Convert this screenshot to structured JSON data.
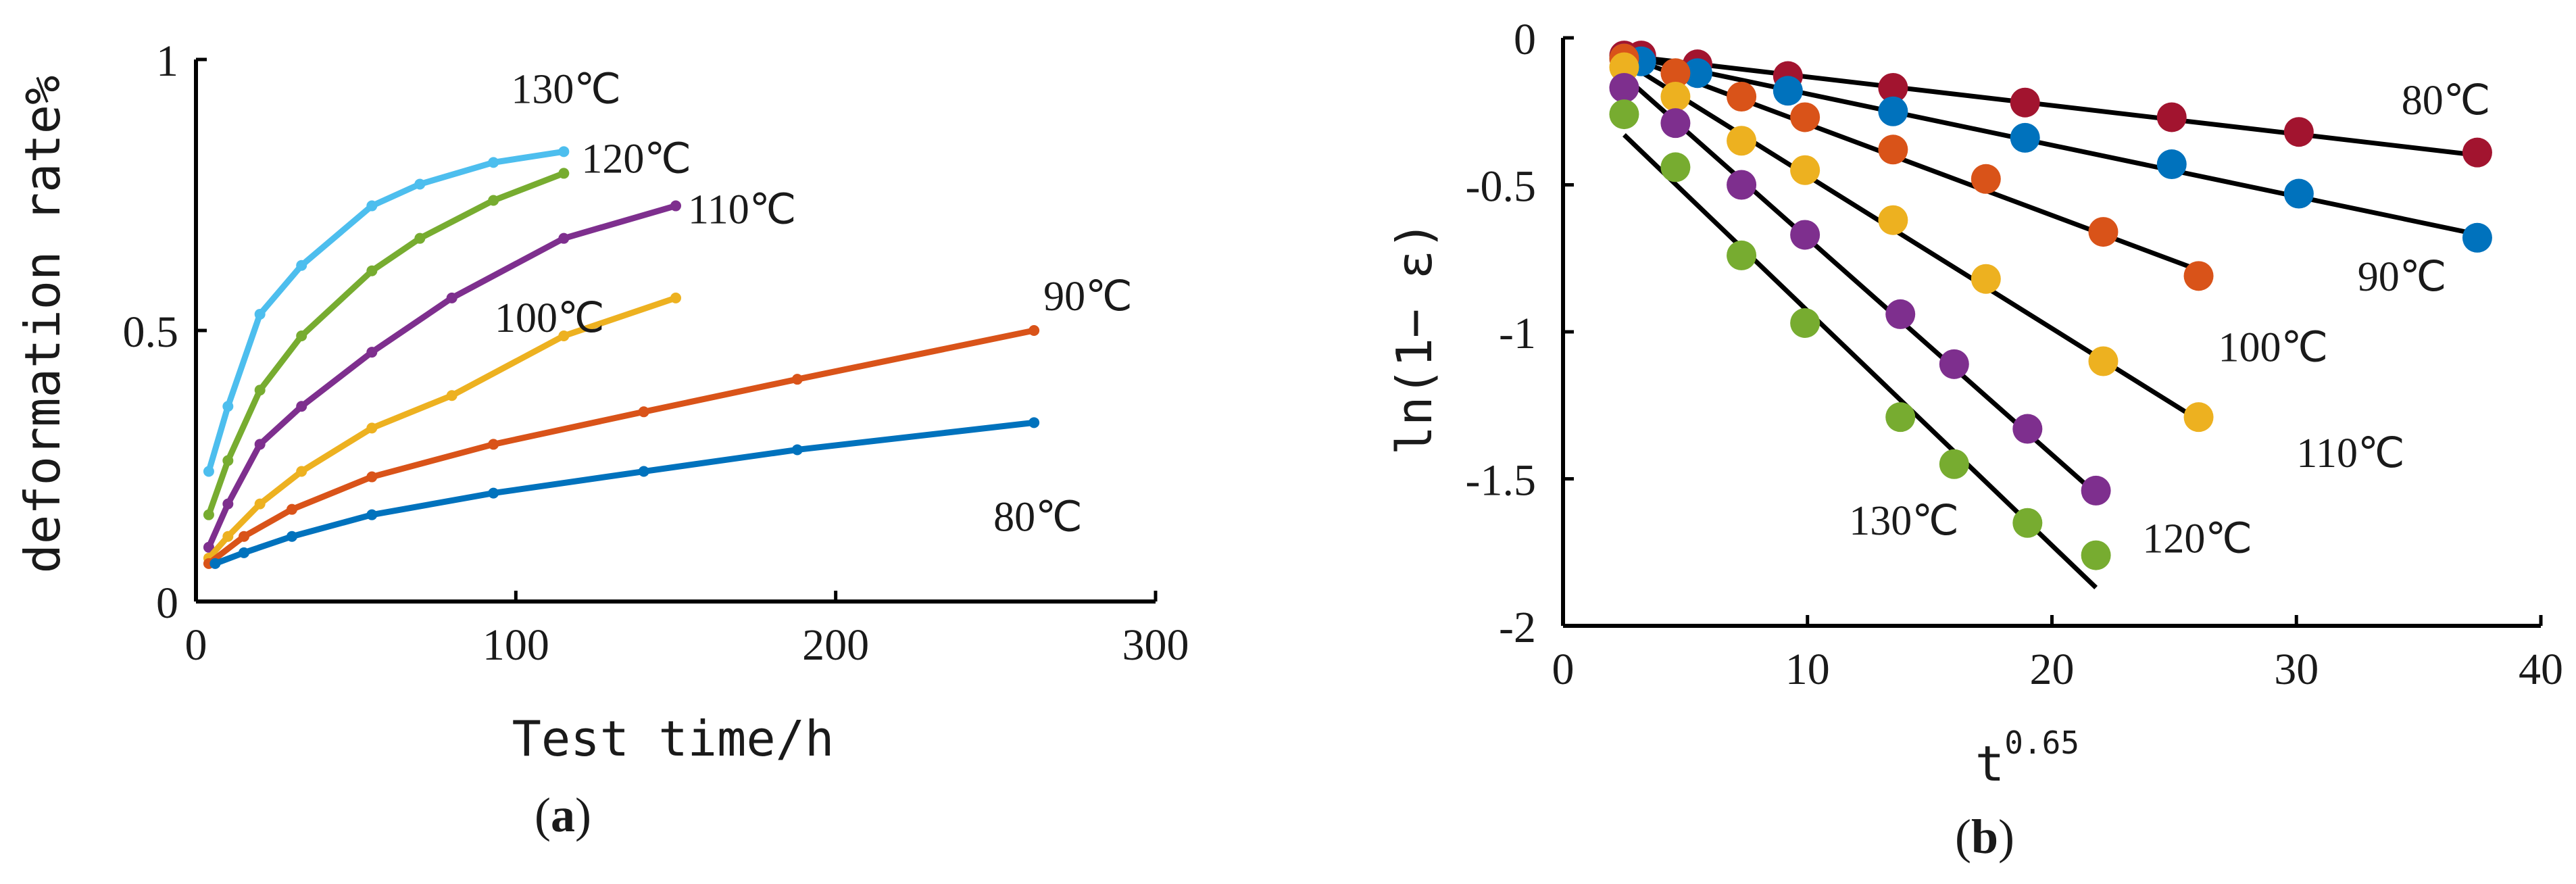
{
  "chart_data": [
    {
      "type": "line",
      "panel_label": "a",
      "title": "",
      "xlabel": "Test time/h",
      "ylabel": "deformation rate%",
      "xlim": [
        0,
        300
      ],
      "ylim": [
        0,
        1
      ],
      "xticks": [
        "0",
        "100",
        "200",
        "300"
      ],
      "yticks": [
        "0",
        "0.5",
        "1"
      ],
      "series": [
        {
          "name": "130℃",
          "color": "#4DBEEE",
          "x": [
            4,
            10,
            20,
            33,
            55,
            70,
            93,
            115
          ],
          "y": [
            0.24,
            0.36,
            0.53,
            0.62,
            0.73,
            0.77,
            0.81,
            0.83
          ]
        },
        {
          "name": "120℃",
          "color": "#77AC30",
          "x": [
            4,
            10,
            20,
            33,
            55,
            70,
            93,
            115
          ],
          "y": [
            0.16,
            0.26,
            0.39,
            0.49,
            0.61,
            0.67,
            0.74,
            0.79
          ]
        },
        {
          "name": "110℃",
          "color": "#7E2F8E",
          "x": [
            4,
            10,
            20,
            33,
            55,
            80,
            115,
            150
          ],
          "y": [
            0.1,
            0.18,
            0.29,
            0.36,
            0.46,
            0.56,
            0.67,
            0.73
          ]
        },
        {
          "name": "100℃",
          "color": "#EDB120",
          "x": [
            4,
            10,
            20,
            33,
            55,
            80,
            115,
            150
          ],
          "y": [
            0.08,
            0.12,
            0.18,
            0.24,
            0.32,
            0.38,
            0.49,
            0.56
          ]
        },
        {
          "name": "90℃",
          "color": "#D95319",
          "x": [
            4,
            15,
            30,
            55,
            93,
            140,
            188,
            262
          ],
          "y": [
            0.07,
            0.12,
            0.17,
            0.23,
            0.29,
            0.35,
            0.41,
            0.5
          ]
        },
        {
          "name": "80℃",
          "color": "#0072BD",
          "x": [
            6,
            15,
            30,
            55,
            93,
            140,
            188,
            262
          ],
          "y": [
            0.07,
            0.09,
            0.12,
            0.16,
            0.2,
            0.24,
            0.28,
            0.33
          ]
        }
      ]
    },
    {
      "type": "scatter",
      "panel_label": "b",
      "title": "",
      "xlabel": "t",
      "xlabel_superscript": "0.65",
      "ylabel": "ln(1− ε)",
      "xlim": [
        0,
        40
      ],
      "ylim": [
        -2,
        0
      ],
      "xticks": [
        "0",
        "10",
        "20",
        "30",
        "40"
      ],
      "yticks": [
        "0",
        "-0.5",
        "-1",
        "-1.5",
        "-2"
      ],
      "series": [
        {
          "name": "80℃",
          "color": "#A2142F",
          "x": [
            2.5,
            3.2,
            5.5,
            9.2,
            13.5,
            18.9,
            24.9,
            30.1,
            37.4
          ],
          "y": [
            -0.06,
            -0.06,
            -0.09,
            -0.13,
            -0.17,
            -0.22,
            -0.27,
            -0.32,
            -0.39
          ],
          "fit": {
            "x": [
              2.5,
              37.5
            ],
            "y": [
              -0.06,
              -0.4
            ]
          }
        },
        {
          "name": "90℃",
          "color": "#0072BD",
          "x": [
            2.5,
            3.2,
            5.5,
            9.2,
            13.5,
            18.9,
            24.9,
            30.1,
            37.4
          ],
          "y": [
            -0.07,
            -0.08,
            -0.12,
            -0.18,
            -0.25,
            -0.34,
            -0.43,
            -0.53,
            -0.68
          ],
          "fit": {
            "x": [
              2.5,
              37.5
            ],
            "y": [
              -0.06,
              -0.67
            ]
          }
        },
        {
          "name": "100℃",
          "color": "#D95319",
          "x": [
            2.5,
            4.6,
            7.3,
            9.9,
            13.5,
            17.3,
            22.1,
            26.0
          ],
          "y": [
            -0.07,
            -0.12,
            -0.2,
            -0.27,
            -0.38,
            -0.48,
            -0.66,
            -0.81
          ],
          "fit": {
            "x": [
              2.5,
              26.0
            ],
            "y": [
              -0.06,
              -0.79
            ]
          }
        },
        {
          "name": "110℃",
          "color": "#EDB120",
          "x": [
            2.5,
            4.6,
            7.3,
            9.9,
            13.5,
            17.3,
            22.1,
            26.0
          ],
          "y": [
            -0.1,
            -0.2,
            -0.35,
            -0.45,
            -0.62,
            -0.82,
            -1.1,
            -1.29
          ],
          "fit": {
            "x": [
              2.5,
              26.0
            ],
            "y": [
              -0.08,
              -1.3
            ]
          }
        },
        {
          "name": "120℃",
          "color": "#7E2F8E",
          "x": [
            2.5,
            4.6,
            7.3,
            9.9,
            13.8,
            16.0,
            19.0,
            21.8
          ],
          "y": [
            -0.17,
            -0.29,
            -0.5,
            -0.67,
            -0.94,
            -1.11,
            -1.33,
            -1.54
          ],
          "fit": {
            "x": [
              2.5,
              21.8
            ],
            "y": [
              -0.13,
              -1.55
            ]
          }
        },
        {
          "name": "130℃",
          "color": "#77AC30",
          "x": [
            2.5,
            4.6,
            7.3,
            9.9,
            13.8,
            16.0,
            19.0,
            21.8
          ],
          "y": [
            -0.26,
            -0.44,
            -0.74,
            -0.97,
            -1.29,
            -1.45,
            -1.65,
            -1.76
          ],
          "fit": {
            "x": [
              2.5,
              21.8
            ],
            "y": [
              -0.33,
              -1.87
            ]
          }
        }
      ]
    }
  ]
}
